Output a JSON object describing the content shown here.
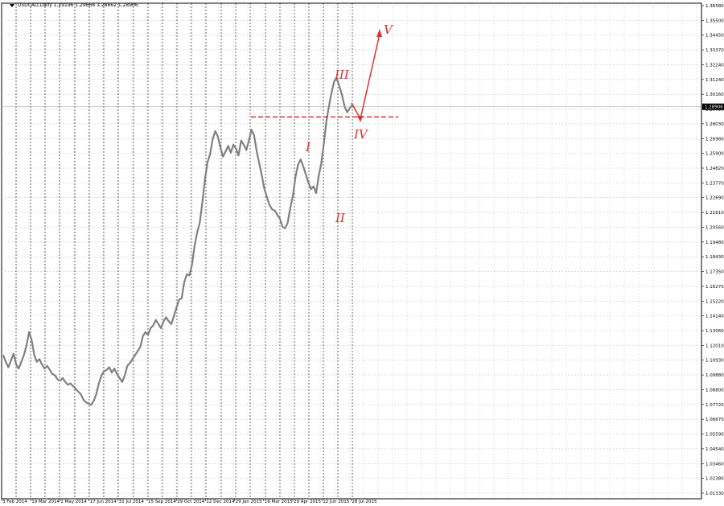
{
  "header": {
    "symbol": "USDCAD,Daily",
    "ohlc": "1.29196 1.29666 1.28662 1.28906"
  },
  "colors": {
    "background": "#ffffff",
    "price_line": "#808080",
    "grid": "#c8c8c8",
    "separator": "#000000",
    "annotation": "#e03030",
    "current_price_bg": "#000000"
  },
  "icons": [
    "dropdown-triangle-icon"
  ],
  "chart_data": {
    "type": "line",
    "title": "USDCAD,Daily",
    "grid": true,
    "price_scale_labels": [
      "1.36580",
      "1.35500",
      "1.34450",
      "1.33370",
      "1.32240",
      "1.31240",
      "1.30160",
      "1.29096",
      "1.28030",
      "1.26980",
      "1.25900",
      "1.24820",
      "1.23770",
      "1.22690",
      "1.21610",
      "1.20560",
      "1.19480",
      "1.18430",
      "1.17350",
      "1.16270",
      "1.15220",
      "1.14140",
      "1.13060",
      "1.12010",
      "1.10930",
      "1.09880",
      "1.08800",
      "1.07720",
      "1.06670",
      "1.05590",
      "1.04540",
      "1.03460",
      "1.02380",
      "1.01330"
    ],
    "current_price": "1.28906",
    "time_labels": [
      "3 Feb 2014",
      "19 Mar 2014",
      "2 May 2014",
      "17 Jun 2014",
      "31 Jul 2014",
      "15 Sep 2014",
      "29 Oct 2014",
      "12 Dec 2014",
      "29 Jan 2015",
      "16 Mar 2015",
      "29 Apr 2015",
      "12 Jun 2015",
      "28 Jul 2015"
    ],
    "ylim": [
      1.0128,
      1.3658
    ],
    "series": [
      {
        "values": [
          1.105,
          1.1,
          1.096,
          1.101,
          1.106,
          1.098,
          1.095,
          1.1,
          1.105,
          1.112,
          1.122,
          1.116,
          1.105,
          1.1,
          1.102,
          1.098,
          1.095,
          1.097,
          1.094,
          1.091,
          1.09,
          1.087,
          1.086,
          1.088,
          1.085,
          1.083,
          1.084,
          1.082,
          1.08,
          1.078,
          1.076,
          1.072,
          1.07,
          1.069,
          1.068,
          1.071,
          1.076,
          1.084,
          1.09,
          1.093,
          1.094,
          1.096,
          1.092,
          1.095,
          1.091,
          1.088,
          1.085,
          1.09,
          1.097,
          1.099,
          1.102,
          1.105,
          1.108,
          1.111,
          1.119,
          1.122,
          1.12,
          1.125,
          1.127,
          1.131,
          1.128,
          1.125,
          1.13,
          1.133,
          1.13,
          1.128,
          1.134,
          1.14,
          1.146,
          1.147,
          1.159,
          1.165,
          1.164,
          1.172,
          1.186,
          1.196,
          1.203,
          1.218,
          1.235,
          1.248,
          1.254,
          1.265,
          1.271,
          1.267,
          1.259,
          1.252,
          1.256,
          1.26,
          1.255,
          1.261,
          1.258,
          1.253,
          1.264,
          1.261,
          1.257,
          1.264,
          1.272,
          1.268,
          1.256,
          1.247,
          1.238,
          1.228,
          1.222,
          1.216,
          1.213,
          1.212,
          1.209,
          1.206,
          1.2,
          1.199,
          1.203,
          1.214,
          1.223,
          1.237,
          1.246,
          1.25,
          1.245,
          1.239,
          1.233,
          1.228,
          1.23,
          1.225,
          1.238,
          1.247,
          1.262,
          1.279,
          1.29,
          1.3,
          1.308,
          1.31,
          1.304,
          1.298,
          1.289,
          1.285,
          1.288,
          1.2906
        ]
      }
    ],
    "annotations": {
      "support_level": 1.2815,
      "wave_labels": [
        "I",
        "II",
        "III",
        "IV",
        "V"
      ]
    }
  }
}
